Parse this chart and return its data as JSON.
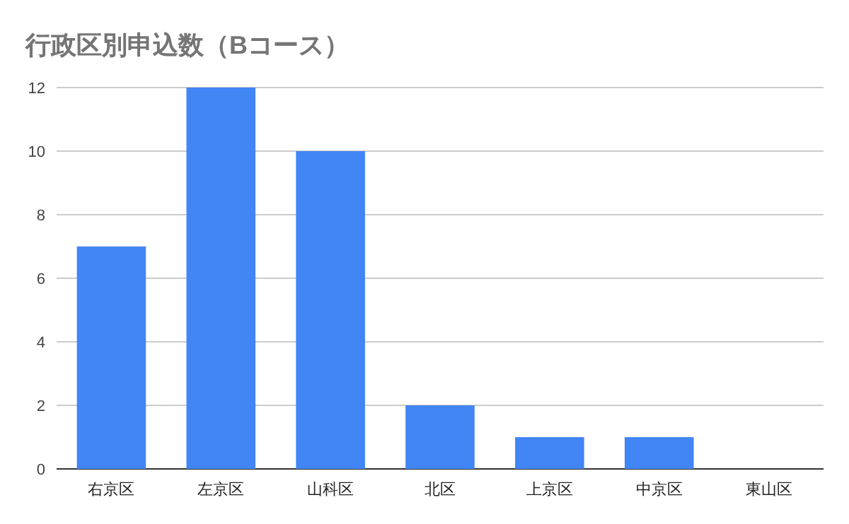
{
  "chart_data": {
    "type": "bar",
    "title": "行政区別申込数（Bコース）",
    "categories": [
      "右京区",
      "左京区",
      "山科区",
      "北区",
      "上京区",
      "中京区",
      "東山区"
    ],
    "values": [
      7,
      12,
      10,
      2,
      1,
      1,
      0
    ],
    "color": "#4285f4",
    "ylim": [
      0,
      12
    ],
    "yticks": [
      0,
      2,
      4,
      6,
      8,
      10,
      12
    ],
    "grid": "y"
  }
}
